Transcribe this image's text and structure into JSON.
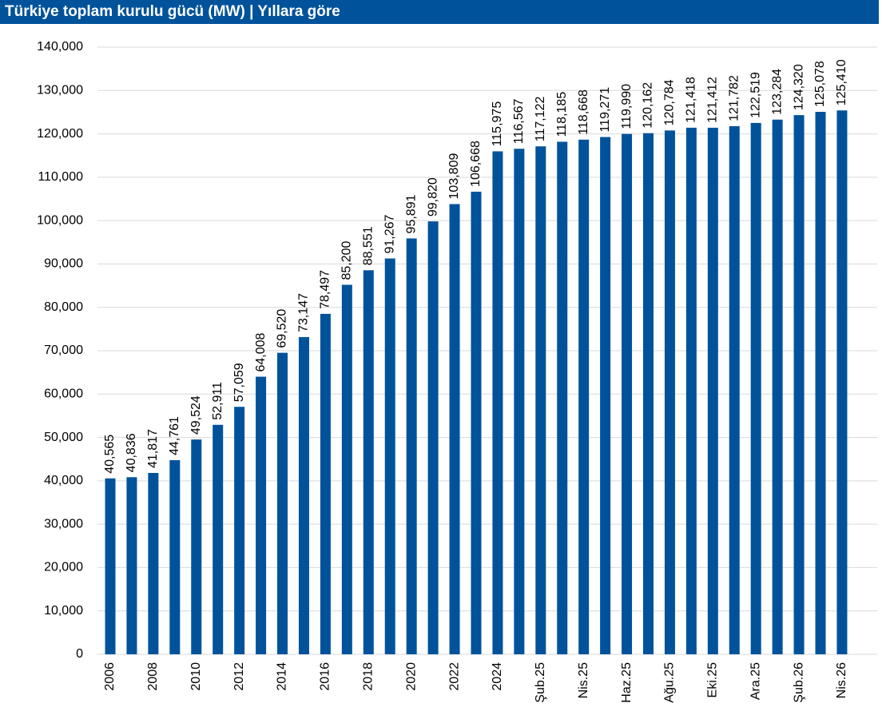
{
  "chart_data": {
    "type": "bar",
    "title": "Türkiye toplam kurulu gücü (MW) | Yıllara göre",
    "categories": [
      "2006",
      null,
      "2008",
      null,
      "2010",
      null,
      "2012",
      null,
      "2014",
      null,
      "2016",
      null,
      "2018",
      null,
      "2020",
      null,
      "2022",
      null,
      "2024",
      null,
      "Şub.25",
      null,
      "Nis.25",
      null,
      "Haz.25",
      null,
      "Ağu.25",
      null,
      "Eki.25",
      null,
      "Ara.25",
      null,
      "Şub.26",
      null,
      "Nis.26"
    ],
    "values": [
      40565,
      40836,
      41817,
      44761,
      49524,
      52911,
      57059,
      64008,
      69520,
      73147,
      78497,
      85200,
      88551,
      91267,
      95891,
      99820,
      103809,
      106668,
      115975,
      116567,
      117122,
      118185,
      118668,
      119271,
      119990,
      120162,
      120784,
      121418,
      121412,
      121782,
      122519,
      123284,
      124320,
      125078,
      125410
    ],
    "value_labels": [
      "40,565",
      "40,836",
      "41,817",
      "44,761",
      "49,524",
      "52,911",
      "57,059",
      "64,008",
      "69,520",
      "73,147",
      "78,497",
      "85,200",
      "88,551",
      "91,267",
      "95,891",
      "99,820",
      "103,809",
      "106,668",
      "115,975",
      "116,567",
      "117,122",
      "118,185",
      "118,668",
      "119,271",
      "119,990",
      "120,162",
      "120,784",
      "121,418",
      "121,412",
      "121,782",
      "122,519",
      "123,284",
      "124,320",
      "125,078",
      "125,410"
    ],
    "color": "#00529b",
    "ylim": [
      0,
      140000
    ],
    "yticks": [
      0,
      {
        "value": 10000,
        "label": "10,000"
      },
      {
        "value": 20000,
        "label": "20,000"
      },
      {
        "value": 30000,
        "label": "30,000"
      },
      {
        "value": 40000,
        "label": "40,000"
      },
      {
        "value": 50000,
        "label": "50,000"
      },
      {
        "value": 60000,
        "label": "60,000"
      },
      {
        "value": 70000,
        "label": "70,000"
      },
      {
        "value": 80000,
        "label": "80,000"
      },
      {
        "value": 90000,
        "label": "90,000"
      },
      {
        "value": 100000,
        "label": "100,000"
      },
      {
        "value": 110000,
        "label": "110,000"
      },
      {
        "value": 120000,
        "label": "120,000"
      },
      {
        "value": 130000,
        "label": "130,000"
      },
      {
        "value": 140000,
        "label": "140,000"
      }
    ],
    "grid": true
  }
}
